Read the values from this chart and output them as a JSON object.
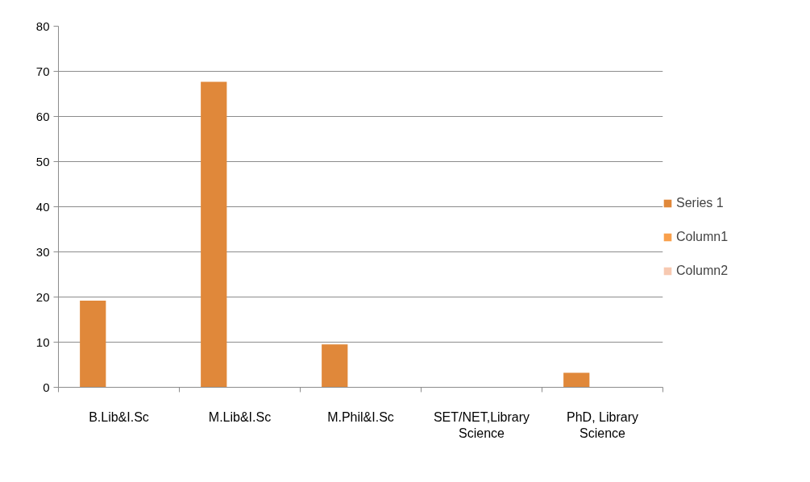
{
  "chart_data": {
    "type": "bar",
    "categories": [
      "B.Lib&I.Sc",
      "M.Lib&I.Sc",
      "M.Phil&I.Sc",
      "SET/NET,Library Science",
      "PhD, Library Science"
    ],
    "series": [
      {
        "name": "Series 1",
        "color": "#e0883a",
        "values": [
          19.2,
          67.7,
          9.5,
          0,
          3.2
        ]
      },
      {
        "name": "Column1",
        "color": "#f9a04c",
        "values": [
          null,
          null,
          null,
          null,
          null
        ]
      },
      {
        "name": "Column2",
        "color": "#f7c9b1",
        "values": [
          null,
          null,
          null,
          null,
          null
        ]
      }
    ],
    "ylim": [
      0,
      80
    ],
    "yticks": [
      0,
      10,
      20,
      30,
      40,
      50,
      60,
      70,
      80
    ],
    "grid": "y",
    "legend": "right"
  }
}
